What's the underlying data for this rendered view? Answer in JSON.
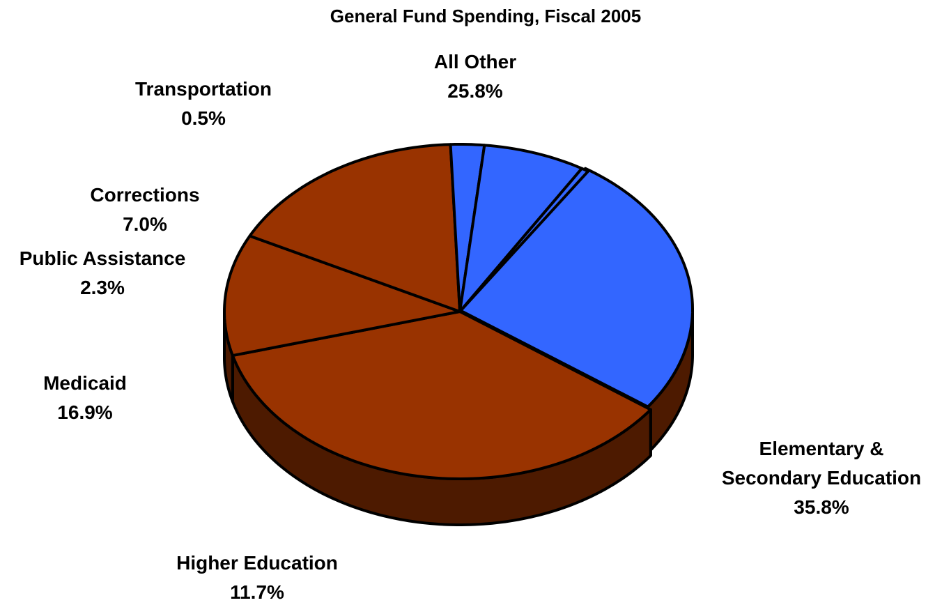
{
  "chart_data": {
    "type": "pie",
    "title": "General Fund Spending, Fiscal 2005",
    "style": "3d-exploded-perspective",
    "slices": [
      {
        "name": "All Other",
        "value": 25.8,
        "value_label": "25.8%",
        "color": "#3366FF"
      },
      {
        "name": "Elementary & Secondary Education",
        "name_lines": [
          "Elementary &",
          "Secondary Education"
        ],
        "value": 35.8,
        "value_label": "35.8%",
        "color": "#993300"
      },
      {
        "name": "Higher Education",
        "value": 11.7,
        "value_label": "11.7%",
        "color": "#993300"
      },
      {
        "name": "Medicaid",
        "value": 16.9,
        "value_label": "16.9%",
        "color": "#993300"
      },
      {
        "name": "Public Assistance",
        "value": 2.3,
        "value_label": "2.3%",
        "color": "#3366FF"
      },
      {
        "name": "Corrections",
        "value": 7.0,
        "value_label": "7.0%",
        "color": "#3366FF"
      },
      {
        "name": "Transportation",
        "value": 0.5,
        "value_label": "0.5%",
        "color": "#3366FF"
      }
    ],
    "side_color": "#4D1A00",
    "legend": "none"
  }
}
